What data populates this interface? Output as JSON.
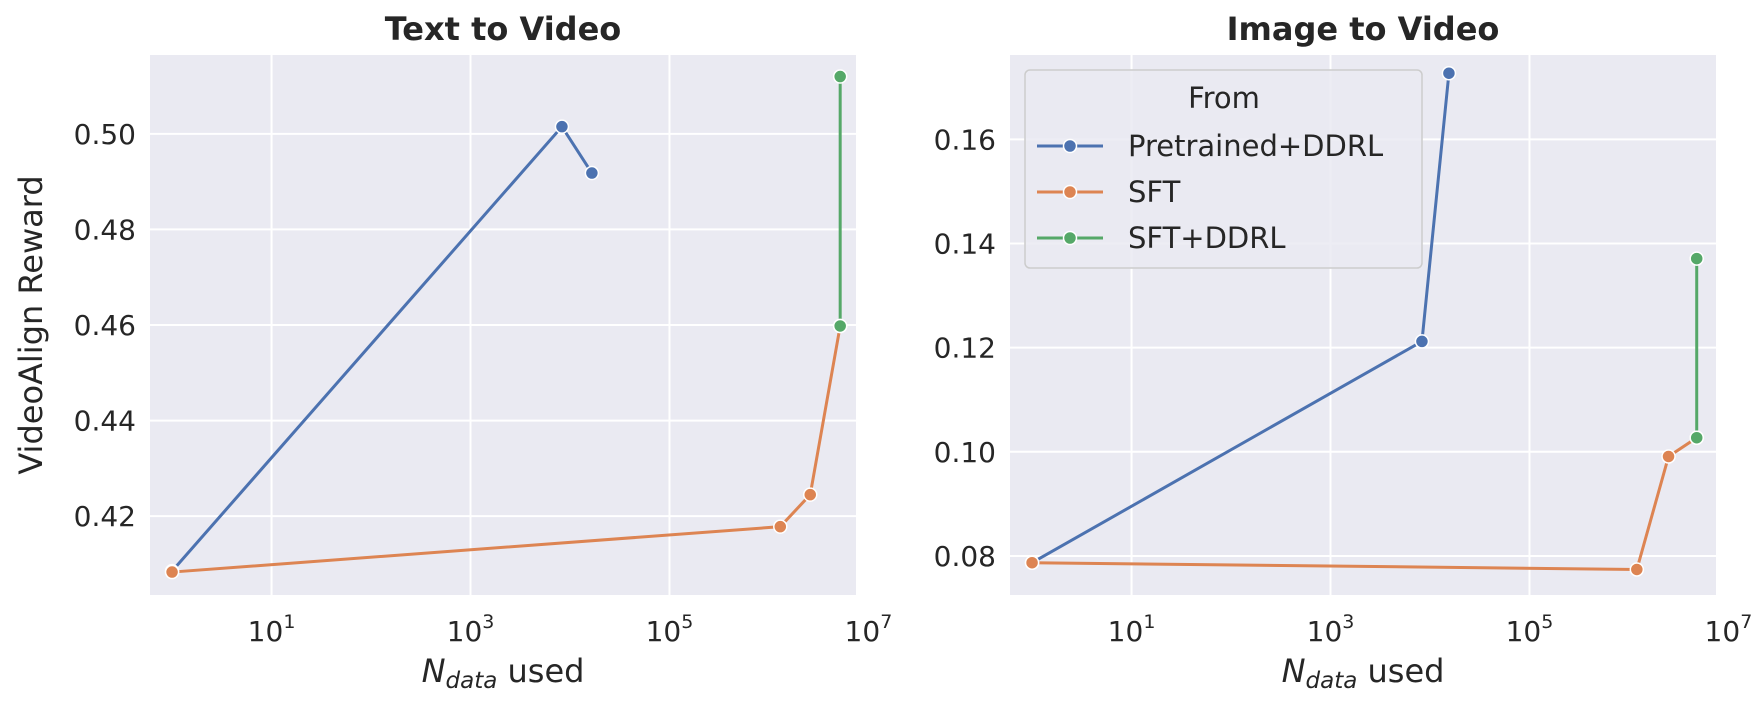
{
  "chart_data": [
    {
      "type": "line",
      "title": "Text to Video",
      "xlabel": "N_data used",
      "xlabel_main": "N",
      "xlabel_sub": "data",
      "xlabel_rest": " used",
      "ylabel": "VideoAlign Reward",
      "xscale": "log",
      "xlim": [
        0.6,
        7500000
      ],
      "ylim": [
        0.4035,
        0.5165
      ],
      "grid": true,
      "x_ticks": [
        {
          "base": "10",
          "exp": "1",
          "value": 10
        },
        {
          "base": "10",
          "exp": "3",
          "value": 1000
        },
        {
          "base": "10",
          "exp": "5",
          "value": 100000
        },
        {
          "base": "10",
          "exp": "7",
          "value": 10000000
        }
      ],
      "y_ticks": [
        "0.42",
        "0.44",
        "0.46",
        "0.48",
        "0.50"
      ],
      "series": [
        {
          "name": "Pretrained+DDRL",
          "color": "#4c72b0",
          "x": [
            1,
            8300,
            16600
          ],
          "y": [
            0.4085,
            0.5015,
            0.4918
          ]
        },
        {
          "name": "SFT",
          "color": "#dd8452",
          "x": [
            1,
            1300000,
            2600000,
            5200000
          ],
          "y": [
            0.4083,
            0.4178,
            0.4245,
            0.4598
          ]
        },
        {
          "name": "SFT+DDRL",
          "color": "#55a868",
          "x": [
            5200000,
            5200000
          ],
          "y": [
            0.4598,
            0.512
          ]
        }
      ]
    },
    {
      "type": "line",
      "title": "Image to Video",
      "xlabel": "N_data used",
      "xlabel_main": "N",
      "xlabel_sub": "data",
      "xlabel_rest": " used",
      "ylabel": "",
      "xscale": "log",
      "xlim": [
        0.6,
        7500000
      ],
      "ylim": [
        0.0725,
        0.1762
      ],
      "grid": true,
      "x_ticks": [
        {
          "base": "10",
          "exp": "1",
          "value": 10
        },
        {
          "base": "10",
          "exp": "3",
          "value": 1000
        },
        {
          "base": "10",
          "exp": "5",
          "value": 100000
        },
        {
          "base": "10",
          "exp": "7",
          "value": 10000000
        }
      ],
      "y_ticks": [
        "0.08",
        "0.10",
        "0.12",
        "0.14",
        "0.16"
      ],
      "series": [
        {
          "name": "Pretrained+DDRL",
          "color": "#4c72b0",
          "x": [
            1,
            8300,
            15500
          ],
          "y": [
            0.0787,
            0.1212,
            0.1727
          ]
        },
        {
          "name": "SFT",
          "color": "#dd8452",
          "x": [
            1,
            1200000,
            2500000,
            4800000
          ],
          "y": [
            0.0787,
            0.0774,
            0.0991,
            0.1027
          ]
        },
        {
          "name": "SFT+DDRL",
          "color": "#55a868",
          "x": [
            4800000,
            4800000
          ],
          "y": [
            0.1027,
            0.1371
          ]
        }
      ],
      "legend": {
        "title": "From",
        "position": "upper left",
        "entries": [
          "Pretrained+DDRL",
          "SFT",
          "SFT+DDRL"
        ]
      }
    }
  ],
  "style": {
    "plot_bg": "#eaeaf2",
    "grid_color": "#ffffff",
    "text_color": "#262626",
    "legend_bg": "#eaeaf2",
    "legend_border": "#cccccc"
  }
}
